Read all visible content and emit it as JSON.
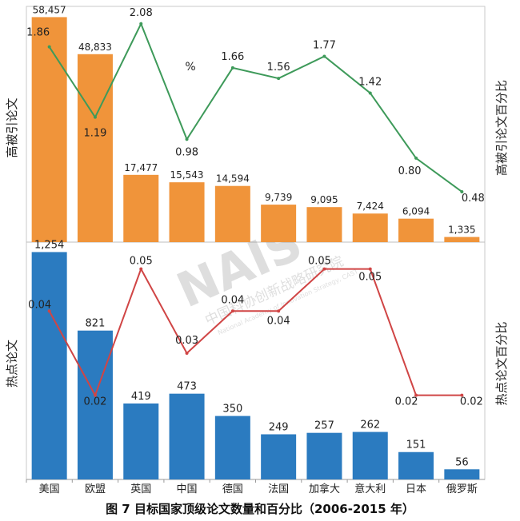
{
  "chart_data": [
    {
      "type": "bar+line",
      "ylabel": "高被引论文",
      "y2label": "高被引论文百分比",
      "y2_unit": "%",
      "categories": [
        "美国",
        "欧盟",
        "英国",
        "中国",
        "德国",
        "法国",
        "加拿大",
        "意大利",
        "日本",
        "俄罗斯"
      ],
      "series": [
        {
          "name": "高被引论文",
          "kind": "bar",
          "color": "#f0943a",
          "values": [
            58457,
            48833,
            17477,
            15543,
            14594,
            9739,
            9095,
            7424,
            6094,
            1335
          ],
          "labels": [
            "58,457",
            "48,833",
            "17,477",
            "15,543",
            "14,594",
            "9,739",
            "9,095",
            "7,424",
            "6,094",
            "1,335"
          ]
        },
        {
          "name": "高被引论文百分比",
          "kind": "line",
          "color": "#3e9a5a",
          "values": [
            1.86,
            1.19,
            2.08,
            0.98,
            1.66,
            1.56,
            1.77,
            1.42,
            0.8,
            0.48
          ],
          "labels": [
            "1.86",
            "1.19",
            "2.08",
            "0.98",
            "1.66",
            "1.56",
            "1.77",
            "1.42",
            "0.80",
            "0.48"
          ]
        }
      ],
      "ylim": [
        0,
        60000
      ],
      "y2lim": [
        0,
        2.2
      ]
    },
    {
      "type": "bar+line",
      "ylabel": "热点论文",
      "y2label": "热点论文百分比",
      "categories": [
        "美国",
        "欧盟",
        "英国",
        "中国",
        "德国",
        "法国",
        "加拿大",
        "意大利",
        "日本",
        "俄罗斯"
      ],
      "series": [
        {
          "name": "热点论文",
          "kind": "bar",
          "color": "#2b7bc0",
          "values": [
            1254,
            821,
            419,
            473,
            350,
            249,
            257,
            262,
            151,
            56
          ],
          "labels": [
            "1,254",
            "821",
            "419",
            "473",
            "350",
            "249",
            "257",
            "262",
            "151",
            "56"
          ]
        },
        {
          "name": "热点论文百分比",
          "kind": "line",
          "color": "#d04545",
          "values": [
            0.04,
            0.02,
            0.05,
            0.03,
            0.04,
            0.04,
            0.05,
            0.05,
            0.02,
            0.02
          ],
          "labels": [
            "0.04",
            "0.02",
            "0.05",
            "0.03",
            "0.04",
            "0.04",
            "0.05",
            "0.05",
            "0.02",
            "0.02"
          ]
        }
      ],
      "ylim": [
        0,
        1300
      ],
      "y2lim": [
        0,
        0.056
      ]
    }
  ],
  "watermark": {
    "logo": "NAIS",
    "text": "中国科协创新战略研究院",
    "subtext": "National Academy of Innovation Strategy, CAST"
  },
  "caption": "图 7  目标国家顶级论文数量和百分比（2006-2015 年）"
}
